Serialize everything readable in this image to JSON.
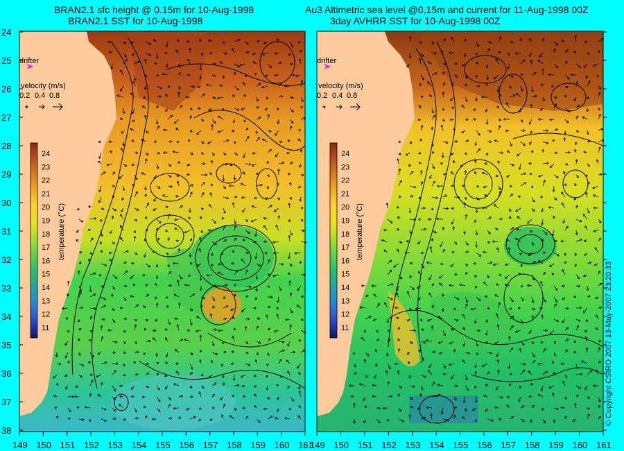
{
  "titles": {
    "left_line1": "BRAN2.1 sfc height @ 0.15m for 10-Aug-1998",
    "left_line2": "BRAN2.1 SST for 10-Aug-1998",
    "right_line1": "Au3 Altimetric sea level  @0.15m and current for 11-Aug-1998 00Z",
    "right_line2": "3day AVHRR SST for 10-Aug-1998 00Z"
  },
  "axes": {
    "lat_ticks": [
      "24",
      "25",
      "26",
      "27",
      "28",
      "29",
      "30",
      "31",
      "32",
      "33",
      "34",
      "35",
      "36",
      "37",
      "38"
    ],
    "lon_ticks": [
      "149",
      "150",
      "151",
      "152",
      "153",
      "154",
      "155",
      "156",
      "157",
      "158",
      "159",
      "160",
      "161"
    ],
    "lat_range": [
      24,
      38.4
    ],
    "lon_range": [
      149,
      161
    ]
  },
  "legend": {
    "drifter_label": "drifter",
    "velocity_title": "velocity (m/s)",
    "velocity_values": [
      "0.2",
      "0.4",
      "0.8"
    ],
    "colorbar_label": "temperature (°C)",
    "colorbar_ticks": [
      "24",
      "23",
      "22",
      "21",
      "20",
      "19",
      "18",
      "17",
      "16",
      "15",
      "14",
      "13",
      "12",
      "11"
    ],
    "colorbar_colors": [
      "#8b2a0b",
      "#b5501e",
      "#d97a20",
      "#eeaa22",
      "#ffd22c",
      "#e9e41c",
      "#b2e225",
      "#63d840",
      "#2ac46a",
      "#16ae9a",
      "#1f92d2",
      "#2a63d8",
      "#1f37b6",
      "#0a1a73"
    ]
  },
  "colors": {
    "background": "#00ffff",
    "land": "#fecb9c",
    "drifter": "#ff00ff"
  },
  "copyright": "© Copyright CSIRO 2007   13-May-2007 23:20:33"
}
